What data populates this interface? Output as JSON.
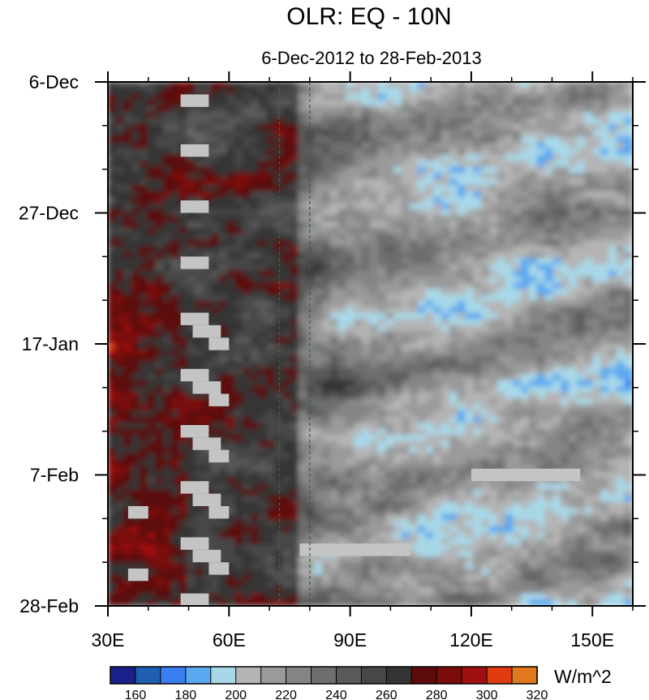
{
  "chart_data": {
    "type": "heatmap",
    "title": "OLR: EQ - 10N",
    "subtitle": "6-Dec-2012 to 28-Feb-2013",
    "x_range": [
      30,
      160
    ],
    "x_ticks": [
      {
        "value": 30,
        "label": "30E"
      },
      {
        "value": 60,
        "label": "60E"
      },
      {
        "value": 90,
        "label": "90E"
      },
      {
        "value": 120,
        "label": "120E"
      },
      {
        "value": 150,
        "label": "150E"
      }
    ],
    "y_range_days": [
      0,
      84
    ],
    "y_ticks": [
      {
        "day": 0,
        "label": "6-Dec"
      },
      {
        "day": 21,
        "label": "27-Dec"
      },
      {
        "day": 42,
        "label": "17-Jan"
      },
      {
        "day": 63,
        "label": "7-Feb"
      },
      {
        "day": 84,
        "label": "28-Feb"
      }
    ],
    "reference_lines_lon": [
      72.5,
      80
    ],
    "colorbar": {
      "unit": "W/m^2",
      "levels": [
        160,
        170,
        180,
        190,
        200,
        210,
        220,
        230,
        240,
        250,
        260,
        270,
        280,
        290,
        300,
        310,
        320
      ],
      "labels": [
        "160",
        "180",
        "200",
        "220",
        "240",
        "260",
        "280",
        "300",
        "320"
      ],
      "colors": [
        "#1a1f8a",
        "#1e5fb0",
        "#3c7df0",
        "#5aa8ef",
        "#a8d8e8",
        "#b4b4b4",
        "#9a9a9a",
        "#858585",
        "#6e6e6e",
        "#5a5a5a",
        "#474747",
        "#343434",
        "#5c0a0a",
        "#7a0c0c",
        "#a01010",
        "#e03a10",
        "#e0781e"
      ]
    },
    "missing_data": [
      {
        "lon": [
          48,
          55
        ],
        "days": [
          2,
          4
        ]
      },
      {
        "lon": [
          48,
          55
        ],
        "days": [
          10,
          12
        ]
      },
      {
        "lon": [
          48,
          55
        ],
        "days": [
          19,
          21
        ]
      },
      {
        "lon": [
          48,
          55
        ],
        "days": [
          28,
          30
        ]
      },
      {
        "lon": [
          48,
          55
        ],
        "days": [
          37,
          39
        ]
      },
      {
        "lon": [
          51,
          58
        ],
        "days": [
          39,
          41
        ]
      },
      {
        "lon": [
          55,
          60
        ],
        "days": [
          41,
          43
        ]
      },
      {
        "lon": [
          48,
          55
        ],
        "days": [
          46,
          48
        ]
      },
      {
        "lon": [
          51,
          58
        ],
        "days": [
          48,
          50
        ]
      },
      {
        "lon": [
          55,
          60
        ],
        "days": [
          50,
          52
        ]
      },
      {
        "lon": [
          48,
          55
        ],
        "days": [
          55,
          57
        ]
      },
      {
        "lon": [
          51,
          58
        ],
        "days": [
          57,
          59
        ]
      },
      {
        "lon": [
          55,
          60
        ],
        "days": [
          59,
          61
        ]
      },
      {
        "lon": [
          48,
          55
        ],
        "days": [
          64,
          66
        ]
      },
      {
        "lon": [
          51,
          58
        ],
        "days": [
          66,
          68
        ]
      },
      {
        "lon": [
          55,
          60
        ],
        "days": [
          68,
          70
        ]
      },
      {
        "lon": [
          35,
          40
        ],
        "days": [
          68,
          70
        ]
      },
      {
        "lon": [
          48,
          55
        ],
        "days": [
          73,
          75
        ]
      },
      {
        "lon": [
          51,
          58
        ],
        "days": [
          75,
          77
        ]
      },
      {
        "lon": [
          55,
          60
        ],
        "days": [
          77,
          79
        ]
      },
      {
        "lon": [
          35,
          40
        ],
        "days": [
          78,
          80
        ]
      },
      {
        "lon": [
          48,
          55
        ],
        "days": [
          82,
          84
        ]
      },
      {
        "lon": [
          77.5,
          105
        ],
        "days": [
          74,
          76
        ]
      },
      {
        "lon": [
          120,
          147
        ],
        "days": [
          62,
          64
        ]
      }
    ]
  }
}
